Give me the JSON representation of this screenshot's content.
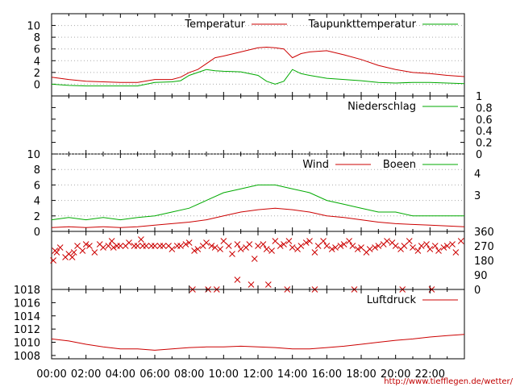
{
  "source_text": "http://www.tiefflegen.de/wetter/",
  "chart_data": [
    {
      "id": "temperature",
      "type": "line",
      "x_unit": "hour",
      "xlim": [
        0,
        24
      ],
      "ylim": [
        -2,
        12
      ],
      "yticks": [
        0,
        2,
        4,
        6,
        8,
        10
      ],
      "grid": true,
      "legend_position": "top-right",
      "series": [
        {
          "name": "Temperatur",
          "color": "#cc0000",
          "x": [
            0,
            1,
            2,
            3,
            4,
            5,
            6,
            7,
            7.5,
            8,
            8.5,
            9,
            9.5,
            10,
            11,
            12,
            12.5,
            13,
            13.5,
            14,
            14.5,
            15,
            16,
            17,
            18,
            19,
            20,
            21,
            22,
            23,
            24
          ],
          "values": [
            1.2,
            0.8,
            0.5,
            0.4,
            0.3,
            0.3,
            0.8,
            0.8,
            1.2,
            2.0,
            2.5,
            3.5,
            4.5,
            4.8,
            5.5,
            6.2,
            6.3,
            6.2,
            6.0,
            4.5,
            5.2,
            5.5,
            5.7,
            5.0,
            4.2,
            3.2,
            2.5,
            2.0,
            1.8,
            1.5,
            1.3
          ]
        },
        {
          "name": "Taupunkttemperatur",
          "color": "#00aa00",
          "x": [
            0,
            1,
            2,
            3,
            4,
            5,
            6,
            7,
            7.5,
            8,
            8.5,
            9,
            9.5,
            10,
            11,
            12,
            12.5,
            13,
            13.5,
            14,
            14.5,
            15,
            16,
            17,
            18,
            19,
            20,
            21,
            22,
            23,
            24
          ],
          "values": [
            0.0,
            -0.2,
            -0.3,
            -0.3,
            -0.3,
            -0.3,
            0.3,
            0.4,
            0.6,
            1.5,
            2.0,
            2.5,
            2.3,
            2.2,
            2.1,
            1.5,
            0.5,
            0.0,
            0.5,
            2.5,
            1.8,
            1.5,
            1.0,
            0.8,
            0.6,
            0.3,
            0.2,
            0.3,
            0.3,
            0.2,
            0.1
          ]
        }
      ]
    },
    {
      "id": "precipitation",
      "type": "line",
      "x_unit": "hour",
      "xlim": [
        0,
        24
      ],
      "ylim": [
        0,
        1
      ],
      "yticks": [
        0,
        0.2,
        0.4,
        0.6,
        0.8,
        1
      ],
      "grid": false,
      "legend_position": "top-right",
      "series": [
        {
          "name": "Niederschlag",
          "color": "#00aa00",
          "x": [
            0,
            24
          ],
          "values": [
            0,
            0
          ]
        }
      ]
    },
    {
      "id": "wind",
      "type": "line",
      "x_unit": "hour",
      "xlim": [
        0,
        24
      ],
      "ylim": [
        0,
        10
      ],
      "yticks": [
        0,
        2,
        4,
        6,
        8,
        10
      ],
      "y2ticks": [
        3,
        4
      ],
      "grid": true,
      "legend_position": "top-right",
      "series": [
        {
          "name": "Wind",
          "color": "#cc0000",
          "x": [
            0,
            1,
            2,
            3,
            4,
            5,
            6,
            7,
            8,
            9,
            10,
            11,
            12,
            13,
            14,
            15,
            16,
            17,
            18,
            19,
            20,
            21,
            22,
            23,
            24
          ],
          "values": [
            0.5,
            0.6,
            0.5,
            0.6,
            0.5,
            0.6,
            0.8,
            1.0,
            1.2,
            1.5,
            2.0,
            2.5,
            2.8,
            3.0,
            2.8,
            2.5,
            2.0,
            1.8,
            1.5,
            1.2,
            1.0,
            0.9,
            0.8,
            0.7,
            0.6
          ]
        },
        {
          "name": "Boeen",
          "color": "#00aa00",
          "x": [
            0,
            1,
            2,
            3,
            4,
            5,
            6,
            7,
            8,
            9,
            10,
            11,
            12,
            13,
            14,
            15,
            16,
            17,
            18,
            19,
            20,
            21,
            22,
            23,
            24
          ],
          "values": [
            1.5,
            1.8,
            1.5,
            1.8,
            1.5,
            1.8,
            2.0,
            2.5,
            3.0,
            4.0,
            5.0,
            5.5,
            6.0,
            6.0,
            5.5,
            5.0,
            4.0,
            3.5,
            3.0,
            2.5,
            2.5,
            2.0,
            2.0,
            2.0,
            2.0
          ]
        }
      ]
    },
    {
      "id": "wind_direction",
      "type": "scatter",
      "x_unit": "hour",
      "xlim": [
        0,
        24
      ],
      "ylim": [
        0,
        360
      ],
      "y2ticks": [
        0,
        90,
        180,
        270,
        360
      ],
      "series": [
        {
          "color": "#cc0000",
          "x": [
            0.1,
            0.3,
            0.5,
            0.8,
            1.0,
            1.3,
            1.5,
            1.8,
            2.0,
            2.2,
            2.5,
            2.8,
            3.0,
            3.3,
            3.5,
            3.8,
            4.0,
            4.3,
            4.5,
            4.8,
            5.0,
            5.3,
            5.5,
            5.8,
            6.0,
            6.3,
            6.5,
            6.8,
            7.0,
            7.3,
            7.5,
            7.8,
            8.0,
            8.3,
            8.5,
            8.8,
            9.0,
            9.3,
            9.5,
            9.8,
            10.0,
            10.3,
            10.5,
            10.8,
            11.0,
            11.3,
            11.5,
            11.8,
            12.0,
            12.3,
            12.5,
            12.8,
            13.0,
            13.3,
            13.5,
            13.8,
            14.0,
            14.3,
            14.5,
            14.8,
            15.0,
            15.3,
            15.5,
            15.8,
            16.0,
            16.3,
            16.5,
            16.8,
            17.0,
            17.3,
            17.5,
            17.8,
            18.0,
            18.3,
            18.5,
            18.8,
            19.0,
            19.3,
            19.5,
            19.8,
            20.0,
            20.3,
            20.5,
            20.8,
            21.0,
            21.3,
            21.5,
            21.8,
            22.0,
            22.3,
            22.5,
            22.8,
            23.0,
            23.3,
            23.5,
            23.8,
            0.2,
            1.2,
            3.6,
            5.2,
            8.2,
            9.1,
            9.6,
            10.8,
            11.6,
            12.6,
            13.7,
            15.3,
            17.6,
            20.4,
            22.1
          ],
          "values": [
            180,
            230,
            260,
            200,
            220,
            230,
            270,
            240,
            280,
            270,
            230,
            280,
            260,
            270,
            300,
            270,
            270,
            270,
            290,
            270,
            270,
            270,
            270,
            270,
            270,
            270,
            270,
            270,
            250,
            270,
            270,
            280,
            290,
            240,
            250,
            270,
            290,
            270,
            260,
            250,
            300,
            270,
            220,
            280,
            250,
            260,
            280,
            190,
            270,
            280,
            250,
            240,
            300,
            270,
            280,
            300,
            260,
            250,
            270,
            290,
            300,
            230,
            270,
            300,
            270,
            250,
            260,
            270,
            280,
            300,
            270,
            250,
            260,
            230,
            250,
            260,
            270,
            280,
            300,
            290,
            270,
            250,
            270,
            300,
            260,
            240,
            270,
            280,
            250,
            270,
            240,
            260,
            270,
            280,
            230,
            300,
            240,
            200,
            260,
            310,
            0,
            0,
            0,
            60,
            30,
            30,
            0,
            0,
            0,
            0,
            0
          ]
        }
      ]
    },
    {
      "id": "pressure",
      "type": "line",
      "x_unit": "hour",
      "xlim": [
        0,
        24
      ],
      "ylim": [
        1007.5,
        1018
      ],
      "yticks": [
        1008,
        1010,
        1012,
        1014,
        1016,
        1018
      ],
      "grid": false,
      "legend_position": "top-right",
      "xtick_labels": [
        "00:00",
        "02:00",
        "04:00",
        "06:00",
        "08:00",
        "10:00",
        "12:00",
        "14:00",
        "16:00",
        "18:00",
        "20:00",
        "22:00"
      ],
      "series": [
        {
          "name": "Luftdruck",
          "color": "#cc0000",
          "x": [
            0,
            1,
            2,
            3,
            4,
            5,
            6,
            7,
            8,
            9,
            10,
            11,
            12,
            13,
            14,
            15,
            16,
            17,
            18,
            19,
            20,
            21,
            22,
            23,
            24
          ],
          "values": [
            1010.5,
            1010.2,
            1009.7,
            1009.3,
            1009.0,
            1009.0,
            1008.8,
            1009.0,
            1009.2,
            1009.3,
            1009.3,
            1009.4,
            1009.3,
            1009.2,
            1009.0,
            1009.0,
            1009.2,
            1009.4,
            1009.7,
            1010.0,
            1010.3,
            1010.5,
            1010.8,
            1011.0,
            1011.2
          ]
        }
      ]
    }
  ]
}
